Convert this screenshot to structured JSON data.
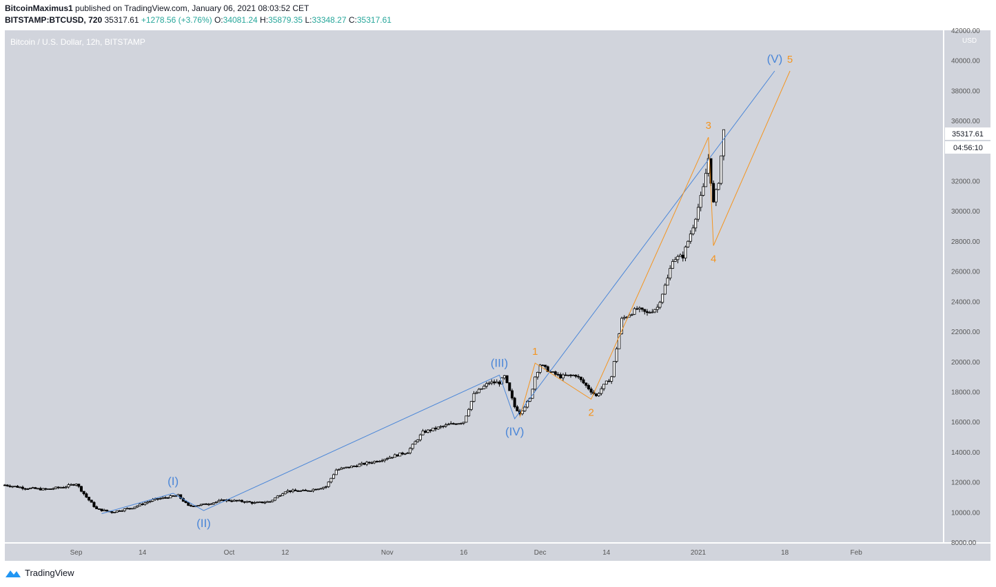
{
  "header": {
    "author": "BitcoinMaximus1",
    "published_text": "published on TradingView.com, January 06, 2021 08:03:52 CET",
    "symbol": "BITSTAMP:BTCUSD, 720",
    "last": "35317.61",
    "change": "+1278.56 (+3.76%)",
    "o_label": "O:",
    "o_value": "34081.24",
    "h_label": "H:",
    "h_value": "35879.35",
    "l_label": "L:",
    "l_value": "33348.27",
    "c_label": "C:",
    "c_value": "35317.61"
  },
  "footer": {
    "brand": "TradingView"
  },
  "colors": {
    "chart_bg": "#d1d4dc",
    "candle_up": "#ffffff",
    "candle_down": "#000000",
    "blue_wave": "#4a86d8",
    "orange_wave": "#f5941d",
    "axis_text": "#555555"
  },
  "chart_data": {
    "type": "candlestick",
    "title": "Bitcoin / U.S. Dollar, 12h, BITSTAMP",
    "y_unit": "USD",
    "ylim": [
      8000,
      42000
    ],
    "y_ticks": [
      "8000.00",
      "10000.00",
      "12000.00",
      "14000.00",
      "16000.00",
      "18000.00",
      "20000.00",
      "22000.00",
      "24000.00",
      "26000.00",
      "28000.00",
      "30000.00",
      "32000.00",
      "34000.00",
      "36000.00",
      "38000.00",
      "40000.00",
      "42000.00"
    ],
    "x_range": [
      "2020-08-18",
      "2021-02-18"
    ],
    "x_ticks": [
      {
        "label": "Sep",
        "date": "2020-09-01"
      },
      {
        "label": "14",
        "date": "2020-09-14"
      },
      {
        "label": "Oct",
        "date": "2020-10-01"
      },
      {
        "label": "12",
        "date": "2020-10-12"
      },
      {
        "label": "Nov",
        "date": "2020-11-01"
      },
      {
        "label": "16",
        "date": "2020-11-16"
      },
      {
        "label": "Dec",
        "date": "2020-12-01"
      },
      {
        "label": "14",
        "date": "2020-12-14"
      },
      {
        "label": "2021",
        "date": "2021-01-01"
      },
      {
        "label": "18",
        "date": "2021-01-18"
      },
      {
        "label": "Feb",
        "date": "2021-02-01"
      }
    ],
    "last_price_label": "35317.61",
    "countdown_label": "04:56:10",
    "price_path": [
      [
        "2020-08-18",
        11800
      ],
      [
        "2020-08-22",
        11600
      ],
      [
        "2020-08-26",
        11500
      ],
      [
        "2020-08-30",
        11700
      ],
      [
        "2020-09-01",
        11900
      ],
      [
        "2020-09-03",
        11000
      ],
      [
        "2020-09-05",
        10200
      ],
      [
        "2020-09-08",
        10000
      ],
      [
        "2020-09-12",
        10300
      ],
      [
        "2020-09-16",
        10800
      ],
      [
        "2020-09-19",
        11000
      ],
      [
        "2020-09-21",
        11100
      ],
      [
        "2020-09-23",
        10400
      ],
      [
        "2020-09-26",
        10500
      ],
      [
        "2020-09-30",
        10800
      ],
      [
        "2020-10-04",
        10700
      ],
      [
        "2020-10-06",
        10600
      ],
      [
        "2020-10-09",
        10700
      ],
      [
        "2020-10-12",
        11400
      ],
      [
        "2020-10-16",
        11400
      ],
      [
        "2020-10-20",
        11700
      ],
      [
        "2020-10-22",
        12800
      ],
      [
        "2020-10-26",
        13100
      ],
      [
        "2020-10-30",
        13400
      ],
      [
        "2020-11-02",
        13700
      ],
      [
        "2020-11-05",
        14000
      ],
      [
        "2020-11-08",
        15300
      ],
      [
        "2020-11-10",
        15500
      ],
      [
        "2020-11-13",
        15800
      ],
      [
        "2020-11-16",
        16000
      ],
      [
        "2020-11-18",
        17800
      ],
      [
        "2020-11-21",
        18600
      ],
      [
        "2020-11-23",
        18600
      ],
      [
        "2020-11-24",
        19000
      ],
      [
        "2020-11-26",
        17000
      ],
      [
        "2020-11-27",
        16600
      ],
      [
        "2020-11-29",
        17500
      ],
      [
        "2020-11-30",
        19000
      ],
      [
        "2020-12-01",
        19800
      ],
      [
        "2020-12-03",
        19300
      ],
      [
        "2020-12-05",
        19000
      ],
      [
        "2020-12-08",
        19100
      ],
      [
        "2020-12-10",
        18400
      ],
      [
        "2020-12-12",
        17700
      ],
      [
        "2020-12-13",
        18200
      ],
      [
        "2020-12-15",
        19000
      ],
      [
        "2020-12-17",
        22800
      ],
      [
        "2020-12-20",
        23500
      ],
      [
        "2020-12-22",
        23200
      ],
      [
        "2020-12-24",
        23600
      ],
      [
        "2020-12-26",
        25500
      ],
      [
        "2020-12-27",
        26800
      ],
      [
        "2020-12-29",
        27000
      ],
      [
        "2020-12-31",
        29000
      ],
      [
        "2021-01-02",
        31500
      ],
      [
        "2021-01-03",
        33500
      ],
      [
        "2021-01-04",
        30500
      ],
      [
        "2021-01-05",
        32000
      ],
      [
        "2021-01-06",
        35317.61
      ]
    ],
    "wave_counts": {
      "blue": [
        {
          "label": "(I)",
          "date": "2020-09-20",
          "value": 11250,
          "pos": "above"
        },
        {
          "label": "(II)",
          "date": "2020-09-26",
          "value": 10100,
          "pos": "below"
        },
        {
          "label": "(III)",
          "date": "2020-11-23",
          "value": 19100,
          "pos": "above"
        },
        {
          "label": "(IV)",
          "date": "2020-11-26",
          "value": 16200,
          "pos": "below"
        },
        {
          "label": "(V)",
          "date": "2021-01-16",
          "value": 39300,
          "pos": "above"
        }
      ],
      "blue_start": {
        "date": "2020-09-06",
        "value": 9900
      },
      "orange": [
        {
          "label": "1",
          "date": "2020-11-30",
          "value": 19900,
          "pos": "above"
        },
        {
          "label": "2",
          "date": "2020-12-11",
          "value": 17500,
          "pos": "below"
        },
        {
          "label": "3",
          "date": "2021-01-03",
          "value": 34900,
          "pos": "above"
        },
        {
          "label": "4",
          "date": "2021-01-04",
          "value": 27700,
          "pos": "below"
        },
        {
          "label": "5",
          "date": "2021-01-19",
          "value": 39300,
          "pos": "above"
        }
      ],
      "orange_start": {
        "date": "2020-11-27",
        "value": 16300
      }
    }
  }
}
